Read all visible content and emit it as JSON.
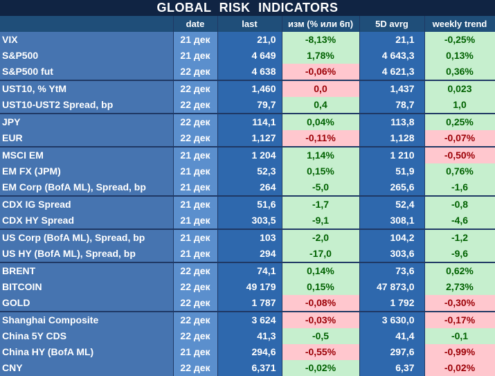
{
  "title": "GLOBAL   RISK   INDICATORS",
  "headers": [
    "",
    "date",
    "last",
    "изм (% или 6п)",
    "5D avrg",
    "weekly trend"
  ],
  "rows": [
    {
      "name": "VIX",
      "date": "21 дек",
      "last": "21,0",
      "chg": "-8,13%",
      "chg_dir": "pos",
      "avg": "21,1",
      "trend": "-0,25%",
      "trend_dir": "pos",
      "group_start": true
    },
    {
      "name": "S&P500",
      "date": "21 дек",
      "last": "4 649",
      "chg": "1,78%",
      "chg_dir": "pos",
      "avg": "4 643,3",
      "trend": "0,13%",
      "trend_dir": "pos"
    },
    {
      "name": "S&P500 fut",
      "date": "22 дек",
      "last": "4 638",
      "chg": "-0,06%",
      "chg_dir": "neg",
      "avg": "4 621,3",
      "trend": "0,36%",
      "trend_dir": "pos"
    },
    {
      "name": "UST10, % YtM",
      "date": "22 дек",
      "last": "1,460",
      "chg": "0,0",
      "chg_dir": "neg",
      "avg": "1,437",
      "trend": "0,023",
      "trend_dir": "pos",
      "group_start": true
    },
    {
      "name": "UST10-UST2 Spread, bp",
      "date": "22 дек",
      "last": "79,7",
      "chg": "0,4",
      "chg_dir": "pos",
      "avg": "78,7",
      "trend": "1,0",
      "trend_dir": "pos"
    },
    {
      "name": "JPY",
      "date": "22 дек",
      "last": "114,1",
      "chg": "0,04%",
      "chg_dir": "pos",
      "avg": "113,8",
      "trend": "0,25%",
      "trend_dir": "pos",
      "group_start": true
    },
    {
      "name": "EUR",
      "date": "22 дек",
      "last": "1,127",
      "chg": "-0,11%",
      "chg_dir": "neg",
      "avg": "1,128",
      "trend": "-0,07%",
      "trend_dir": "neg"
    },
    {
      "name": "MSCI EM",
      "date": "21 дек",
      "last": "1 204",
      "chg": "1,14%",
      "chg_dir": "pos",
      "avg": "1 210",
      "trend": "-0,50%",
      "trend_dir": "neg",
      "group_start": true
    },
    {
      "name": "EM FX (JPM)",
      "date": "21 дек",
      "last": "52,3",
      "chg": "0,15%",
      "chg_dir": "pos",
      "avg": "51,9",
      "trend": "0,76%",
      "trend_dir": "pos"
    },
    {
      "name": "EM Corp (BofA ML), Spread, bp",
      "date": "21 дек",
      "last": "264",
      "chg": "-5,0",
      "chg_dir": "pos",
      "avg": "265,6",
      "trend": "-1,6",
      "trend_dir": "pos"
    },
    {
      "name": "CDX IG Spread",
      "date": "21 дек",
      "last": "51,6",
      "chg": "-1,7",
      "chg_dir": "pos",
      "avg": "52,4",
      "trend": "-0,8",
      "trend_dir": "pos",
      "group_start": true
    },
    {
      "name": "CDX HY Spread",
      "date": "21 дек",
      "last": "303,5",
      "chg": "-9,1",
      "chg_dir": "pos",
      "avg": "308,1",
      "trend": "-4,6",
      "trend_dir": "pos"
    },
    {
      "name": "US Corp (BofA ML), Spread, bp",
      "date": "21 дек",
      "last": "103",
      "chg": "-2,0",
      "chg_dir": "pos",
      "avg": "104,2",
      "trend": "-1,2",
      "trend_dir": "pos",
      "group_start": true
    },
    {
      "name": "US HY (BofA ML), Spread, bp",
      "date": "21 дек",
      "last": "294",
      "chg": "-17,0",
      "chg_dir": "pos",
      "avg": "303,6",
      "trend": "-9,6",
      "trend_dir": "pos"
    },
    {
      "name": "BRENT",
      "date": "22 дек",
      "last": "74,1",
      "chg": "0,14%",
      "chg_dir": "pos",
      "avg": "73,6",
      "trend": "0,62%",
      "trend_dir": "pos",
      "group_start": true
    },
    {
      "name": "BITCOIN",
      "date": "22 дек",
      "last": "49 179",
      "chg": "0,15%",
      "chg_dir": "pos",
      "avg": "47 873,0",
      "trend": "2,73%",
      "trend_dir": "pos"
    },
    {
      "name": "GOLD",
      "date": "22 дек",
      "last": "1 787",
      "chg": "-0,08%",
      "chg_dir": "neg",
      "avg": "1 792",
      "trend": "-0,30%",
      "trend_dir": "neg"
    },
    {
      "name": "Shanghai Composite",
      "date": "22 дек",
      "last": "3 624",
      "chg": "-0,03%",
      "chg_dir": "neg",
      "avg": "3 630,0",
      "trend": "-0,17%",
      "trend_dir": "neg",
      "group_start": true
    },
    {
      "name": "China 5Y CDS",
      "date": "22 дек",
      "last": "41,3",
      "chg": "-0,5",
      "chg_dir": "pos",
      "avg": "41,4",
      "trend": "-0,1",
      "trend_dir": "pos"
    },
    {
      "name": "China HY (BofA ML)",
      "date": "21 дек",
      "last": "294,6",
      "chg": "-0,55%",
      "chg_dir": "neg",
      "avg": "297,6",
      "trend": "-0,99%",
      "trend_dir": "neg"
    },
    {
      "name": "CNY",
      "date": "22 дек",
      "last": "6,371",
      "chg": "-0,02%",
      "chg_dir": "pos",
      "avg": "6,37",
      "trend": "-0,02%",
      "trend_dir": "neg"
    }
  ],
  "colors": {
    "positive_fill": "#c6efce",
    "positive_text": "#006100",
    "negative_fill": "#ffc7ce",
    "negative_text": "#9c0006",
    "header_fill": "#1f4e79",
    "name_fill": "#4674b0"
  }
}
